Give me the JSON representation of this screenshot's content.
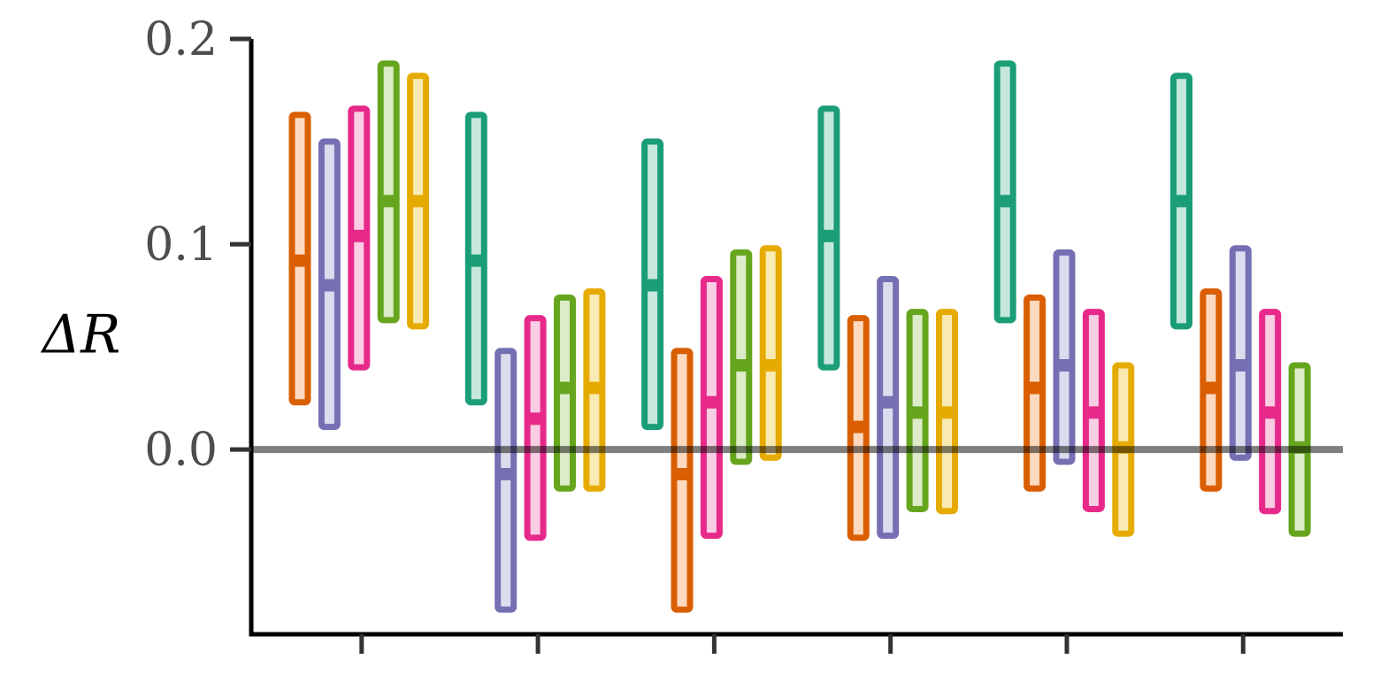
{
  "chart_data": {
    "type": "interval",
    "ylabel": "ΔR",
    "ylim": [
      -0.09,
      0.2
    ],
    "yticks": [
      0.0,
      0.1,
      0.2
    ],
    "ytick_labels": [
      "0.0",
      "0.1",
      "0.2"
    ],
    "xlabel": "",
    "xtick_labels": [
      "",
      "",
      "",
      "",
      "",
      ""
    ],
    "reference_line": 0.0,
    "grid": false,
    "series_colors": {
      "orange": "#d95f02",
      "purple": "#7570b3",
      "pink": "#e7298a",
      "green": "#66a61e",
      "yellow": "#e6ab02",
      "teal": "#1b9e77"
    },
    "fill_colors": {
      "orange": "#fdd9bf",
      "purple": "#dcdcee",
      "pink": "#f9cde3",
      "green": "#dcecc8",
      "yellow": "#f9eab3",
      "teal": "#c6e8dc"
    },
    "groups": [
      {
        "intervals": [
          {
            "color": "orange",
            "low": 0.023,
            "high": 0.163,
            "center": 0.092
          },
          {
            "color": "purple",
            "low": 0.011,
            "high": 0.15,
            "center": 0.08
          },
          {
            "color": "pink",
            "low": 0.04,
            "high": 0.166,
            "center": 0.104
          },
          {
            "color": "green",
            "low": 0.063,
            "high": 0.188,
            "center": 0.121
          },
          {
            "color": "yellow",
            "low": 0.06,
            "high": 0.182,
            "center": 0.121
          }
        ]
      },
      {
        "intervals": [
          {
            "color": "teal",
            "low": 0.023,
            "high": 0.163,
            "center": 0.092
          },
          {
            "color": "purple",
            "low": -0.078,
            "high": 0.048,
            "center": -0.012
          },
          {
            "color": "pink",
            "low": -0.043,
            "high": 0.064,
            "center": 0.015
          },
          {
            "color": "green",
            "low": -0.019,
            "high": 0.074,
            "center": 0.03
          },
          {
            "color": "yellow",
            "low": -0.019,
            "high": 0.077,
            "center": 0.03
          }
        ]
      },
      {
        "intervals": [
          {
            "color": "teal",
            "low": 0.011,
            "high": 0.15,
            "center": 0.08
          },
          {
            "color": "orange",
            "low": -0.078,
            "high": 0.048,
            "center": -0.012
          },
          {
            "color": "pink",
            "low": -0.042,
            "high": 0.083,
            "center": 0.023
          },
          {
            "color": "green",
            "low": -0.006,
            "high": 0.096,
            "center": 0.041
          },
          {
            "color": "yellow",
            "low": -0.004,
            "high": 0.098,
            "center": 0.041
          }
        ]
      },
      {
        "intervals": [
          {
            "color": "teal",
            "low": 0.04,
            "high": 0.166,
            "center": 0.104
          },
          {
            "color": "orange",
            "low": -0.043,
            "high": 0.064,
            "center": 0.011
          },
          {
            "color": "purple",
            "low": -0.042,
            "high": 0.083,
            "center": 0.023
          },
          {
            "color": "green",
            "low": -0.029,
            "high": 0.067,
            "center": 0.018
          },
          {
            "color": "yellow",
            "low": -0.03,
            "high": 0.067,
            "center": 0.018
          }
        ]
      },
      {
        "intervals": [
          {
            "color": "teal",
            "low": 0.063,
            "high": 0.188,
            "center": 0.121
          },
          {
            "color": "orange",
            "low": -0.019,
            "high": 0.074,
            "center": 0.03
          },
          {
            "color": "purple",
            "low": -0.006,
            "high": 0.096,
            "center": 0.041
          },
          {
            "color": "pink",
            "low": -0.029,
            "high": 0.067,
            "center": 0.018
          },
          {
            "color": "yellow",
            "low": -0.041,
            "high": 0.041,
            "center": 0.001
          }
        ]
      },
      {
        "intervals": [
          {
            "color": "teal",
            "low": 0.06,
            "high": 0.182,
            "center": 0.121
          },
          {
            "color": "orange",
            "low": -0.019,
            "high": 0.077,
            "center": 0.03
          },
          {
            "color": "purple",
            "low": -0.004,
            "high": 0.098,
            "center": 0.041
          },
          {
            "color": "pink",
            "low": -0.03,
            "high": 0.067,
            "center": 0.018
          },
          {
            "color": "green",
            "low": -0.041,
            "high": 0.041,
            "center": 0.001
          }
        ]
      }
    ]
  }
}
